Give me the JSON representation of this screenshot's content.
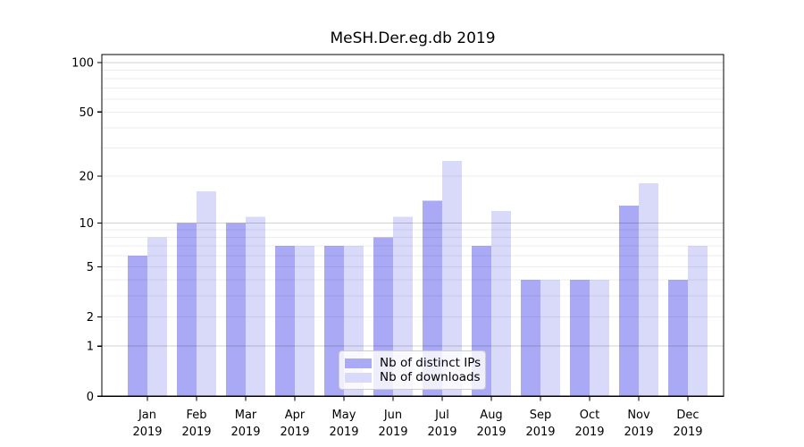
{
  "title": "MeSH.Der.eg.db 2019",
  "chart_data": {
    "type": "bar",
    "title": "MeSH.Der.eg.db 2019",
    "categories": [
      "Jan",
      "Feb",
      "Mar",
      "Apr",
      "May",
      "Jun",
      "Jul",
      "Aug",
      "Sep",
      "Oct",
      "Nov",
      "Dec"
    ],
    "x_sublabel": "2019",
    "series": [
      {
        "name": "Nb of distinct IPs",
        "color": "#a9a9f5",
        "values": [
          6,
          10,
          10,
          7,
          7,
          8,
          14,
          7,
          4,
          4,
          13,
          4
        ]
      },
      {
        "name": "Nb of downloads",
        "color": "#d9d9f9",
        "values": [
          8,
          16,
          11,
          7,
          7,
          11,
          25,
          12,
          4,
          4,
          18,
          7
        ]
      }
    ],
    "xlabel": "",
    "ylabel": "",
    "yscale": "log1p",
    "ylim": [
      0,
      112
    ],
    "y_ticks": [
      0,
      1,
      2,
      5,
      10,
      20,
      50,
      100
    ],
    "y_major_gridlines": [
      1,
      10,
      100
    ],
    "y_minor_gridlines": [
      2,
      3,
      4,
      5,
      6,
      7,
      8,
      9,
      20,
      30,
      40,
      50,
      60,
      70,
      80,
      90
    ],
    "grid": true,
    "legend_position": "lower center"
  },
  "colors": {
    "axis": "#000000",
    "major_grid": "rgba(0,0,0,0.18)",
    "minor_grid": "rgba(0,0,0,0.07)"
  }
}
